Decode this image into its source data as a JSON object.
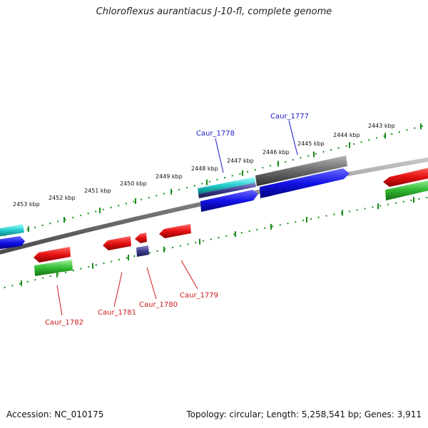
{
  "header": {
    "title": "Chloroflexus aurantiacus J-10-fl, complete genome"
  },
  "footer": {
    "accession": "Accession: NC_010175",
    "topology": "Topology: circular; Length: 5,258,541 bp; Genes: 3,911"
  },
  "colors": {
    "backbone": "#7a7a7a",
    "tick": "#1a8c1a",
    "forward_cds": "#1010e0",
    "reverse_cds": "#e01010",
    "forward_gene": "#22cccc",
    "reverse_gene": "#33bb33",
    "other_feature": "#666666",
    "misc_feature": "#3c3c8c",
    "forward_label": "#1a1acc",
    "reverse_label": "#cc1a1a"
  },
  "scale": {
    "unit": "kbp",
    "labels": [
      "2453 kbp",
      "2452 kbp",
      "2451 kbp",
      "2450 kbp",
      "2449 kbp",
      "2448 kbp",
      "2447 kbp",
      "2446 kbp",
      "2445 kbp",
      "2444 kbp",
      "2443 kbp"
    ]
  },
  "genes": [
    {
      "name": "Caur_1777",
      "strand": "forward"
    },
    {
      "name": "Caur_1778",
      "strand": "forward"
    },
    {
      "name": "Caur_1779",
      "strand": "reverse"
    },
    {
      "name": "Caur_1780",
      "strand": "reverse"
    },
    {
      "name": "Caur_1781",
      "strand": "reverse"
    },
    {
      "name": "Caur_1782",
      "strand": "reverse"
    }
  ]
}
